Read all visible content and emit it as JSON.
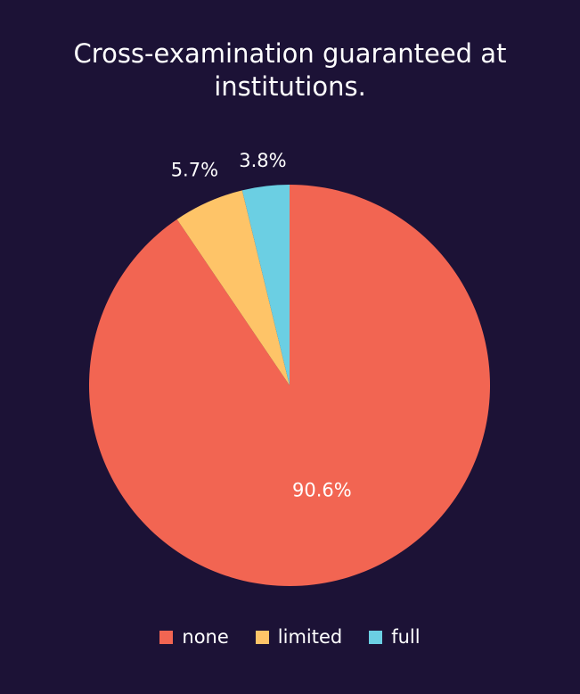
{
  "colors": {
    "background": "#1c1236",
    "none": "#f26552",
    "limited": "#fec468",
    "full": "#6bcfe3"
  },
  "chart_data": {
    "type": "pie",
    "title": "Cross-examination guaranteed at institutions.",
    "legend_position": "bottom",
    "slices": [
      {
        "name": "none",
        "value": 90.6,
        "label": "90.6%",
        "color": "#f26552"
      },
      {
        "name": "limited",
        "value": 5.7,
        "label": "5.7%",
        "color": "#fec468"
      },
      {
        "name": "full",
        "value": 3.8,
        "label": "3.8%",
        "color": "#6bcfe3"
      }
    ]
  }
}
